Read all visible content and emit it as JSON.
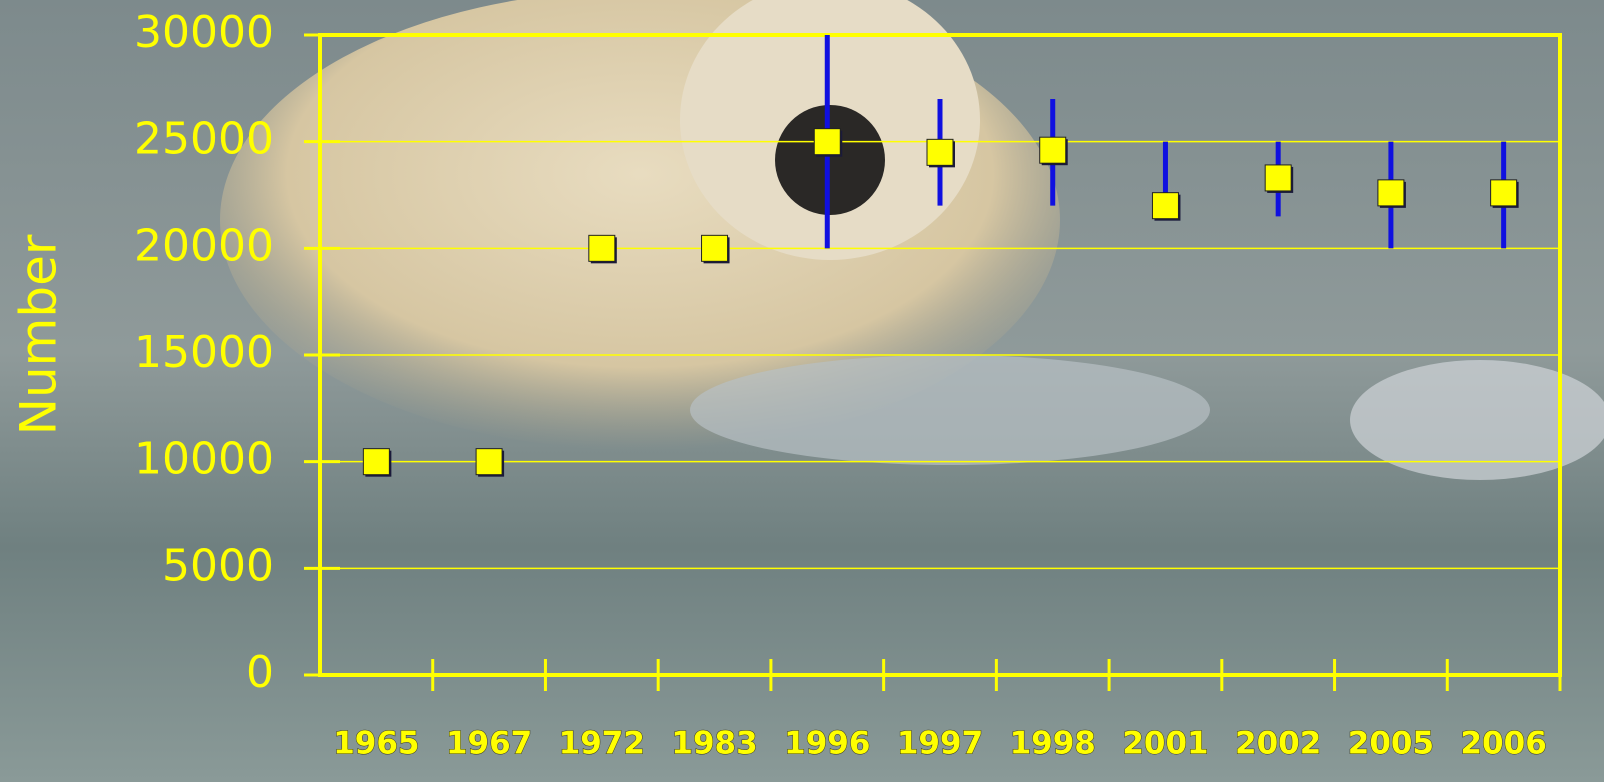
{
  "chart_data": {
    "type": "errorbar",
    "y_label": "Number",
    "categories": [
      "1965",
      "1967",
      "1972",
      "1983",
      "1996",
      "1997",
      "1998",
      "2001",
      "2002",
      "2005",
      "2006"
    ],
    "values": [
      10000,
      10000,
      20000,
      20000,
      25000,
      24500,
      24600,
      22000,
      23300,
      22600,
      22600
    ],
    "lower": [
      null,
      null,
      null,
      null,
      20000,
      22000,
      22000,
      21500,
      21500,
      20000,
      20000
    ],
    "upper": [
      null,
      null,
      null,
      null,
      30000,
      27000,
      27000,
      25000,
      25000,
      25000,
      25000
    ],
    "color": "#ffff00",
    "error_color": "#1010e0",
    "ylim": [
      0,
      30000
    ],
    "yticks": [
      0,
      5000,
      10000,
      15000,
      20000,
      25000,
      30000
    ],
    "grid": true
  }
}
